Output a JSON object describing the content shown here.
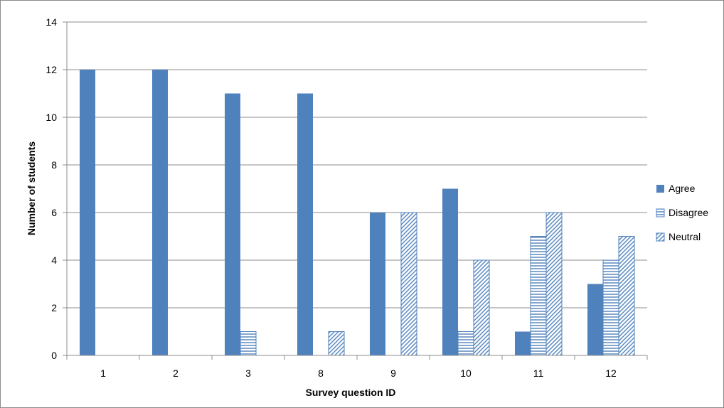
{
  "chart_data": {
    "type": "bar",
    "title": "",
    "xlabel": "Survey question ID",
    "ylabel": "Number of students",
    "categories": [
      "1",
      "2",
      "3",
      "8",
      "9",
      "10",
      "11",
      "12"
    ],
    "ylim": [
      0,
      14
    ],
    "yticks": [
      0,
      2,
      4,
      6,
      8,
      10,
      12,
      14
    ],
    "grid": true,
    "legend_position": "right",
    "series": [
      {
        "name": "Agree",
        "values": [
          12,
          12,
          11,
          11,
          6,
          7,
          1,
          3
        ],
        "color": "#4f81bd",
        "pattern": "solid"
      },
      {
        "name": "Disagree",
        "values": [
          0,
          0,
          1,
          0,
          0,
          1,
          5,
          4
        ],
        "color": "#4f81bd",
        "pattern": "horizontal-lines"
      },
      {
        "name": "Neutral",
        "values": [
          0,
          0,
          0,
          1,
          6,
          4,
          6,
          5
        ],
        "color": "#4f81bd",
        "pattern": "diagonal-lines"
      }
    ]
  }
}
